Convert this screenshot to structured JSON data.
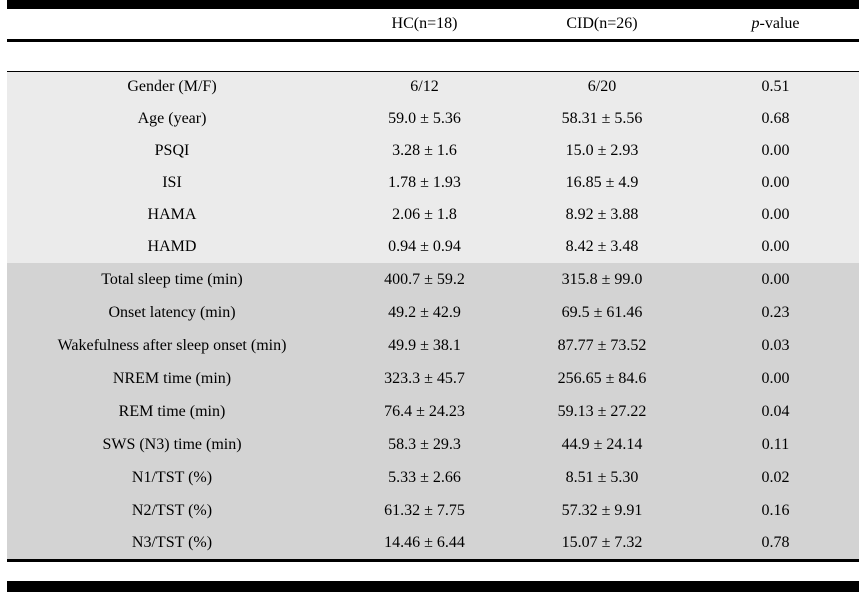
{
  "table": {
    "header": {
      "col_label": "",
      "col_hc": "HC(n=18)",
      "col_cid": "CID(n=26)",
      "col_p_prefix": "p",
      "col_p_suffix": "-value"
    },
    "sections": [
      {
        "name": "demographics-clinical",
        "bg": "#ebebeb",
        "rows": [
          {
            "label": "Gender (M/F)",
            "hc": "6/12",
            "cid": "6/20",
            "p": "0.51"
          },
          {
            "label": "Age (year)",
            "hc": "59.0 ± 5.36",
            "cid": "58.31 ± 5.56",
            "p": "0.68"
          },
          {
            "label": "PSQI",
            "hc": "3.28 ± 1.6",
            "cid": "15.0 ± 2.93",
            "p": "0.00"
          },
          {
            "label": "ISI",
            "hc": "1.78 ± 1.93",
            "cid": "16.85 ± 4.9",
            "p": "0.00"
          },
          {
            "label": "HAMA",
            "hc": "2.06 ± 1.8",
            "cid": "8.92 ± 3.88",
            "p": "0.00"
          },
          {
            "label": "HAMD",
            "hc": "0.94 ± 0.94",
            "cid": "8.42 ± 3.48",
            "p": "0.00"
          }
        ]
      },
      {
        "name": "sleep-parameters",
        "bg": "#d3d3d3",
        "rows": [
          {
            "label": "Total sleep time (min)",
            "hc": "400.7 ± 59.2",
            "cid": "315.8 ± 99.0",
            "p": "0.00"
          },
          {
            "label": "Onset latency (min)",
            "hc": "49.2 ± 42.9",
            "cid": "69.5 ± 61.46",
            "p": "0.23"
          },
          {
            "label": "Wakefulness after sleep onset (min)",
            "hc": "49.9 ± 38.1",
            "cid": "87.77 ± 73.52",
            "p": "0.03"
          },
          {
            "label": "NREM time (min)",
            "hc": "323.3 ± 45.7",
            "cid": "256.65 ± 84.6",
            "p": "0.00"
          },
          {
            "label": "REM time (min)",
            "hc": "76.4 ± 24.23",
            "cid": "59.13 ± 27.22",
            "p": "0.04"
          },
          {
            "label": "SWS (N3) time (min)",
            "hc": "58.3 ± 29.3",
            "cid": "44.9 ± 24.14",
            "p": "0.11"
          },
          {
            "label": "N1/TST (%)",
            "hc": "5.33 ± 2.66",
            "cid": "8.51 ± 5.30",
            "p": "0.02"
          },
          {
            "label": "N2/TST (%)",
            "hc": "61.32 ± 7.75",
            "cid": "57.32 ± 9.91",
            "p": "0.16"
          },
          {
            "label": "N3/TST (%)",
            "hc": "14.46 ± 6.44",
            "cid": "15.07 ± 7.32",
            "p": "0.78"
          }
        ]
      }
    ]
  }
}
